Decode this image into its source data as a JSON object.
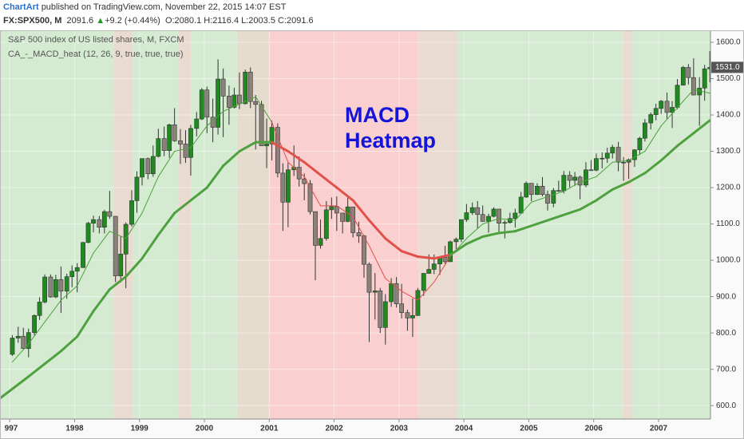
{
  "header": {
    "brand": "ChartArt",
    "published": "published on TradingView.com, November 22, 2015 14:07 EST",
    "symbol": "FX:SPX500, M",
    "price": "2091.6",
    "arrow": "▲",
    "change": "+9.2 (+0.44%)",
    "ohlc": "O:2080.1 H:2116.4 L:2003.5 C:2091.6"
  },
  "chart_data": {
    "type": "candlestick",
    "legend": [
      "S&P 500 index of US listed shares, M, FXCM",
      "CA_-_MACD_heat (12, 26, 9, true, true, true)"
    ],
    "annotation": [
      "MACD",
      "Heatmap"
    ],
    "annotation_color": "#1515d8",
    "up_color": "#208a20",
    "down_color": "#8c817b",
    "wick_color": "#333333",
    "xlim": [
      1996.85,
      2007.8
    ],
    "ylim": [
      563,
      1633
    ],
    "xticks": [
      {
        "value": 1997,
        "label": "997"
      },
      1998,
      1999,
      2000,
      2001,
      2002,
      2003,
      2004,
      2005,
      2006,
      2007
    ],
    "yticks": [
      {
        "value": 600,
        "label": "600.0"
      },
      {
        "value": 700,
        "label": "700.0"
      },
      {
        "value": 800,
        "label": "800.0"
      },
      {
        "value": 900,
        "label": "900.0"
      },
      {
        "value": 1000,
        "label": "1000.0"
      },
      {
        "value": 1100,
        "label": "1100.0"
      },
      {
        "value": 1200,
        "label": "1200.0"
      },
      {
        "value": 1300,
        "label": "1300.0"
      },
      {
        "value": 1400,
        "label": "1400.0"
      },
      {
        "value": 1500,
        "label": "1500.0"
      },
      {
        "value": 1600,
        "label": "1600.0"
      }
    ],
    "grid": true,
    "last_label": "1531.0",
    "zones": [
      {
        "start": 1996.85,
        "end": 1998.6,
        "color": "#d4ebd1",
        "line_color": "#4fa03f"
      },
      {
        "start": 1998.6,
        "end": 1998.9,
        "color": "#e9dbd0",
        "line_color": "#4fa03f"
      },
      {
        "start": 1998.9,
        "end": 1999.6,
        "color": "#d4ebd1",
        "line_color": "#4fa03f"
      },
      {
        "start": 1999.6,
        "end": 1999.8,
        "color": "#e9dbd0",
        "line_color": "#4fa03f"
      },
      {
        "start": 1999.8,
        "end": 2000.5,
        "color": "#d4ebd1",
        "line_color": "#4fa03f"
      },
      {
        "start": 2000.5,
        "end": 2001.0,
        "color": "#e6dccd",
        "line_color": "#4fa03f"
      },
      {
        "start": 2001.0,
        "end": 2003.3,
        "color": "#f9d0cf",
        "line_color": "#e2504a"
      },
      {
        "start": 2003.3,
        "end": 2003.9,
        "color": "#e9dbd0",
        "line_color": "#e2504a"
      },
      {
        "start": 2003.9,
        "end": 2006.45,
        "color": "#d4ebd1",
        "line_color": "#4fa03f"
      },
      {
        "start": 2006.45,
        "end": 2006.6,
        "color": "#e9dbd0",
        "line_color": "#4fa03f"
      },
      {
        "start": 2006.6,
        "end": 2007.8,
        "color": "#d4ebd1",
        "line_color": "#4fa03f"
      }
    ],
    "x": [
      1997.04,
      1997.13,
      1997.21,
      1997.29,
      1997.38,
      1997.46,
      1997.54,
      1997.63,
      1997.71,
      1997.79,
      1997.88,
      1997.96,
      1998.04,
      1998.13,
      1998.21,
      1998.29,
      1998.38,
      1998.46,
      1998.54,
      1998.63,
      1998.71,
      1998.79,
      1998.88,
      1998.96,
      1999.04,
      1999.13,
      1999.21,
      1999.29,
      1999.38,
      1999.46,
      1999.54,
      1999.63,
      1999.71,
      1999.79,
      1999.88,
      1999.96,
      2000.04,
      2000.13,
      2000.21,
      2000.29,
      2000.38,
      2000.46,
      2000.54,
      2000.63,
      2000.71,
      2000.79,
      2000.88,
      2000.96,
      2001.04,
      2001.13,
      2001.21,
      2001.29,
      2001.38,
      2001.46,
      2001.54,
      2001.63,
      2001.71,
      2001.79,
      2001.88,
      2001.96,
      2002.04,
      2002.13,
      2002.21,
      2002.29,
      2002.38,
      2002.46,
      2002.54,
      2002.63,
      2002.71,
      2002.79,
      2002.88,
      2002.96,
      2003.04,
      2003.13,
      2003.21,
      2003.29,
      2003.38,
      2003.46,
      2003.54,
      2003.63,
      2003.71,
      2003.79,
      2003.88,
      2003.96,
      2004.04,
      2004.13,
      2004.21,
      2004.29,
      2004.38,
      2004.46,
      2004.54,
      2004.63,
      2004.71,
      2004.79,
      2004.88,
      2004.96,
      2005.04,
      2005.13,
      2005.21,
      2005.29,
      2005.38,
      2005.46,
      2005.54,
      2005.63,
      2005.71,
      2005.79,
      2005.88,
      2005.96,
      2006.04,
      2006.13,
      2006.21,
      2006.29,
      2006.38,
      2006.46,
      2006.54,
      2006.63,
      2006.71,
      2006.79,
      2006.88,
      2006.96,
      2007.04,
      2007.13,
      2007.21,
      2007.29,
      2007.38,
      2007.46,
      2007.54,
      2007.63,
      2007.71,
      2007.79
    ],
    "candles": [
      [
        741,
        794,
        737,
        786
      ],
      [
        786,
        817,
        773,
        791
      ],
      [
        791,
        814,
        755,
        757
      ],
      [
        757,
        812,
        733,
        801
      ],
      [
        801,
        851,
        793,
        848
      ],
      [
        848,
        898,
        836,
        885
      ],
      [
        885,
        961,
        881,
        954
      ],
      [
        954,
        961,
        897,
        899
      ],
      [
        899,
        960,
        896,
        947
      ],
      [
        947,
        983,
        855,
        915
      ],
      [
        915,
        963,
        894,
        955
      ],
      [
        955,
        986,
        926,
        970
      ],
      [
        970,
        992,
        912,
        980
      ],
      [
        980,
        1051,
        979,
        1049
      ],
      [
        1049,
        1106,
        1047,
        1102
      ],
      [
        1102,
        1123,
        1077,
        1112
      ],
      [
        1112,
        1122,
        1074,
        1091
      ],
      [
        1091,
        1139,
        1074,
        1134
      ],
      [
        1134,
        1191,
        1114,
        1121
      ],
      [
        1121,
        1122,
        940,
        957
      ],
      [
        957,
        1066,
        939,
        1017
      ],
      [
        1017,
        1104,
        923,
        1099
      ],
      [
        1099,
        1193,
        1093,
        1164
      ],
      [
        1164,
        1245,
        1131,
        1229
      ],
      [
        1229,
        1280,
        1206,
        1280
      ],
      [
        1280,
        1283,
        1223,
        1238
      ],
      [
        1238,
        1316,
        1230,
        1286
      ],
      [
        1286,
        1362,
        1283,
        1335
      ],
      [
        1335,
        1368,
        1287,
        1302
      ],
      [
        1302,
        1376,
        1282,
        1373
      ],
      [
        1373,
        1419,
        1326,
        1329
      ],
      [
        1329,
        1361,
        1265,
        1320
      ],
      [
        1320,
        1358,
        1268,
        1283
      ],
      [
        1283,
        1373,
        1233,
        1363
      ],
      [
        1363,
        1408,
        1341,
        1389
      ],
      [
        1389,
        1474,
        1386,
        1469
      ],
      [
        1469,
        1478,
        1350,
        1394
      ],
      [
        1394,
        1445,
        1325,
        1366
      ],
      [
        1366,
        1553,
        1346,
        1499
      ],
      [
        1499,
        1528,
        1339,
        1452
      ],
      [
        1452,
        1481,
        1373,
        1421
      ],
      [
        1421,
        1475,
        1418,
        1455
      ],
      [
        1455,
        1517,
        1416,
        1431
      ],
      [
        1431,
        1525,
        1429,
        1518
      ],
      [
        1518,
        1531,
        1419,
        1437
      ],
      [
        1437,
        1455,
        1305,
        1429
      ],
      [
        1429,
        1439,
        1316,
        1315
      ],
      [
        1315,
        1390,
        1254,
        1320
      ],
      [
        1320,
        1384,
        1275,
        1366
      ],
      [
        1366,
        1377,
        1228,
        1240
      ],
      [
        1240,
        1267,
        1081,
        1160
      ],
      [
        1160,
        1269,
        1091,
        1249
      ],
      [
        1249,
        1316,
        1232,
        1256
      ],
      [
        1256,
        1286,
        1203,
        1224
      ],
      [
        1224,
        1239,
        1165,
        1211
      ],
      [
        1211,
        1221,
        1126,
        1134
      ],
      [
        1134,
        1134,
        945,
        1041
      ],
      [
        1041,
        1112,
        1032,
        1060
      ],
      [
        1060,
        1163,
        1054,
        1139
      ],
      [
        1139,
        1173,
        1114,
        1148
      ],
      [
        1148,
        1176,
        1081,
        1130
      ],
      [
        1130,
        1130,
        1074,
        1107
      ],
      [
        1107,
        1173,
        1105,
        1147
      ],
      [
        1147,
        1147,
        1063,
        1076
      ],
      [
        1076,
        1106,
        1048,
        1067
      ],
      [
        1067,
        1070,
        952,
        989
      ],
      [
        989,
        994,
        775,
        912
      ],
      [
        912,
        965,
        837,
        916
      ],
      [
        916,
        924,
        800,
        815
      ],
      [
        815,
        907,
        768,
        886
      ],
      [
        886,
        951,
        872,
        936
      ],
      [
        936,
        954,
        870,
        880
      ],
      [
        880,
        935,
        840,
        856
      ],
      [
        856,
        864,
        806,
        841
      ],
      [
        841,
        895,
        789,
        848
      ],
      [
        848,
        924,
        847,
        917
      ],
      [
        917,
        965,
        902,
        964
      ],
      [
        964,
        1016,
        963,
        975
      ],
      [
        975,
        1016,
        962,
        990
      ],
      [
        990,
        1011,
        960,
        1008
      ],
      [
        1008,
        1040,
        990,
        996
      ],
      [
        996,
        1054,
        996,
        1051
      ],
      [
        1051,
        1063,
        1031,
        1058
      ],
      [
        1058,
        1112,
        1050,
        1112
      ],
      [
        1112,
        1155,
        1106,
        1131
      ],
      [
        1131,
        1159,
        1125,
        1145
      ],
      [
        1145,
        1163,
        1088,
        1126
      ],
      [
        1126,
        1151,
        1106,
        1107
      ],
      [
        1107,
        1128,
        1076,
        1121
      ],
      [
        1121,
        1146,
        1118,
        1141
      ],
      [
        1141,
        1141,
        1078,
        1102
      ],
      [
        1102,
        1110,
        1060,
        1104
      ],
      [
        1104,
        1131,
        1101,
        1115
      ],
      [
        1115,
        1142,
        1090,
        1130
      ],
      [
        1130,
        1188,
        1128,
        1174
      ],
      [
        1174,
        1217,
        1172,
        1212
      ],
      [
        1212,
        1212,
        1163,
        1181
      ],
      [
        1181,
        1212,
        1180,
        1204
      ],
      [
        1204,
        1229,
        1176,
        1181
      ],
      [
        1181,
        1192,
        1137,
        1157
      ],
      [
        1157,
        1199,
        1146,
        1192
      ],
      [
        1192,
        1219,
        1188,
        1191
      ],
      [
        1191,
        1246,
        1184,
        1234
      ],
      [
        1234,
        1245,
        1201,
        1220
      ],
      [
        1220,
        1243,
        1205,
        1229
      ],
      [
        1229,
        1233,
        1168,
        1207
      ],
      [
        1207,
        1270,
        1201,
        1249
      ],
      [
        1249,
        1276,
        1246,
        1248
      ],
      [
        1248,
        1294,
        1245,
        1280
      ],
      [
        1280,
        1297,
        1253,
        1281
      ],
      [
        1281,
        1310,
        1268,
        1295
      ],
      [
        1295,
        1318,
        1280,
        1311
      ],
      [
        1311,
        1326,
        1245,
        1270
      ],
      [
        1270,
        1284,
        1219,
        1270
      ],
      [
        1270,
        1280,
        1224,
        1277
      ],
      [
        1277,
        1306,
        1257,
        1304
      ],
      [
        1304,
        1340,
        1290,
        1336
      ],
      [
        1336,
        1389,
        1327,
        1378
      ],
      [
        1378,
        1407,
        1360,
        1401
      ],
      [
        1401,
        1431,
        1385,
        1418
      ],
      [
        1418,
        1441,
        1403,
        1438
      ],
      [
        1438,
        1462,
        1389,
        1407
      ],
      [
        1407,
        1438,
        1364,
        1421
      ],
      [
        1421,
        1499,
        1416,
        1482
      ],
      [
        1482,
        1535,
        1481,
        1531
      ],
      [
        1531,
        1540,
        1484,
        1503
      ],
      [
        1503,
        1556,
        1454,
        1455
      ],
      [
        1455,
        1504,
        1370,
        1474
      ],
      [
        1474,
        1538,
        1439,
        1527
      ],
      [
        1527,
        1576,
        1490,
        1531
      ]
    ],
    "series": [
      {
        "width": 1,
        "x": [
          1997.04,
          1997.29,
          1997.54,
          1997.79,
          1998.04,
          1998.29,
          1998.54,
          1998.79,
          1999.04,
          1999.29,
          1999.54,
          1999.79,
          2000.04,
          2000.29,
          2000.54,
          2000.79,
          2001.04,
          2001.29,
          2001.54,
          2001.79,
          2002.04,
          2002.29,
          2002.54,
          2002.79,
          2003.04,
          2003.29,
          2003.54,
          2003.79,
          2004.04,
          2004.29,
          2004.54,
          2004.79,
          2005.04,
          2005.29,
          2005.54,
          2005.79,
          2006.04,
          2006.29,
          2006.54,
          2006.79,
          2007.04,
          2007.29,
          2007.54,
          2007.79
        ],
        "values": [
          720,
          770,
          830,
          890,
          930,
          1020,
          1080,
          1060,
          1130,
          1230,
          1300,
          1310,
          1370,
          1410,
          1430,
          1450,
          1380,
          1270,
          1230,
          1150,
          1150,
          1120,
          1040,
          950,
          915,
          890,
          940,
          1010,
          1060,
          1100,
          1115,
          1110,
          1160,
          1175,
          1190,
          1215,
          1230,
          1270,
          1275,
          1300,
          1370,
          1420,
          1470,
          1460
        ]
      },
      {
        "width": 3,
        "x": [
          1996.85,
          1997.29,
          1997.54,
          1997.79,
          1998.04,
          1998.29,
          1998.54,
          1998.79,
          1999.04,
          1999.29,
          1999.54,
          1999.79,
          2000.04,
          2000.29,
          2000.54,
          2000.79,
          2001.04,
          2001.29,
          2001.54,
          2001.79,
          2002.04,
          2002.29,
          2002.54,
          2002.79,
          2003.04,
          2003.29,
          2003.54,
          2003.79,
          2004.04,
          2004.29,
          2004.54,
          2004.79,
          2005.04,
          2005.29,
          2005.54,
          2005.79,
          2006.04,
          2006.29,
          2006.54,
          2006.79,
          2007.04,
          2007.29,
          2007.54,
          2007.79
        ],
        "values": [
          620,
          680,
          715,
          750,
          790,
          860,
          920,
          955,
          1005,
          1070,
          1130,
          1165,
          1200,
          1260,
          1300,
          1325,
          1325,
          1300,
          1270,
          1235,
          1200,
          1165,
          1110,
          1060,
          1025,
          1010,
          1005,
          1015,
          1045,
          1065,
          1075,
          1080,
          1095,
          1110,
          1125,
          1140,
          1165,
          1195,
          1215,
          1240,
          1275,
          1315,
          1350,
          1385
        ]
      }
    ]
  }
}
